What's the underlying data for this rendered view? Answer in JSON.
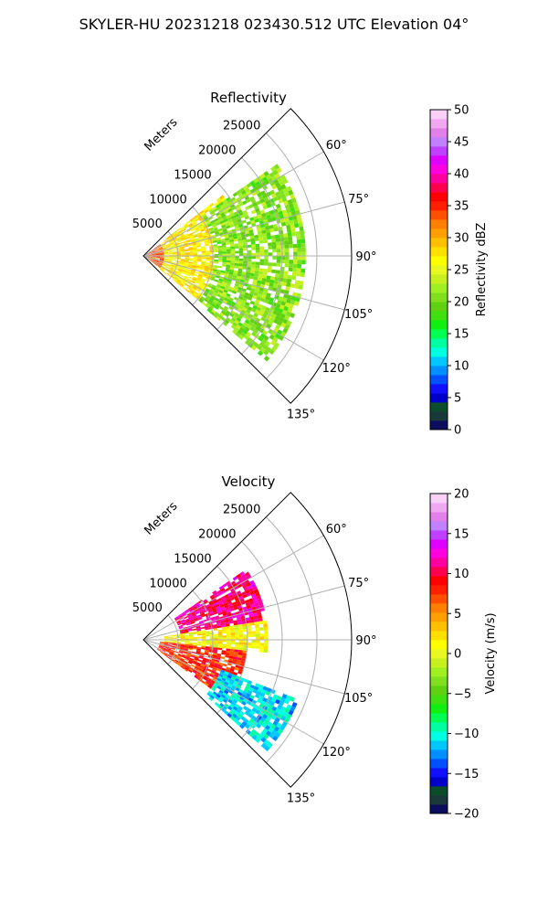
{
  "figure": {
    "suptitle": "SKYLER-HU  20231218  023430.512 UTC Elevation 04°"
  },
  "chart_data": [
    {
      "type": "heatmap",
      "projection": "polar-sector",
      "title": "Reflectivity",
      "range_label": "Meters",
      "range_ticks": [
        5000,
        10000,
        15000,
        20000,
        25000
      ],
      "range_tick_labels": [
        "5000",
        "10000",
        "15000",
        "20000",
        "25000"
      ],
      "rmax": 30000,
      "azimuth_range_deg": [
        45,
        135
      ],
      "azimuth_ticks": [
        60,
        75,
        90,
        105,
        120,
        135
      ],
      "azimuth_tick_labels": [
        "60°",
        "75°",
        "90°",
        "105°",
        "120°",
        "135°"
      ],
      "grid": true,
      "data_extent_m": 25000,
      "colorbar": {
        "label": "Reflectivity dBZ",
        "vmin": 0,
        "vmax": 50,
        "ticks": [
          0,
          5,
          10,
          15,
          20,
          25,
          30,
          35,
          40,
          45,
          50
        ],
        "tick_labels": [
          "0",
          "5",
          "10",
          "15",
          "20",
          "25",
          "30",
          "35",
          "40",
          "45",
          "50"
        ],
        "colors": [
          "#0d0d5e",
          "#1a3a3a",
          "#0b4d2a",
          "#0000c8",
          "#1010ff",
          "#0050ff",
          "#0090ff",
          "#00c8ff",
          "#00ffe0",
          "#00ffa0",
          "#00ff50",
          "#10ef10",
          "#40e010",
          "#60d010",
          "#80e020",
          "#a0ef20",
          "#c8f020",
          "#e8f820",
          "#ffff00",
          "#ffe000",
          "#ffc000",
          "#ffa000",
          "#ff8000",
          "#ff5000",
          "#ff2000",
          "#ff0000",
          "#ff0050",
          "#ff00a0",
          "#ff00e0",
          "#e000ff",
          "#c040ff",
          "#c080ff",
          "#e080e8",
          "#f0a8f0",
          "#f8d0f8"
        ]
      },
      "regions": [
        {
          "name": "near-range high reflectivity",
          "range_m": [
            0,
            6000
          ],
          "azimuth_deg": [
            55,
            125
          ],
          "value_dbz": 34
        },
        {
          "name": "mid-range moderate echo",
          "range_m": [
            3000,
            14000
          ],
          "azimuth_deg": [
            52,
            128
          ],
          "value_dbz": 27
        },
        {
          "name": "far-range weak echo",
          "range_m": [
            10000,
            23000
          ],
          "azimuth_deg": [
            55,
            130
          ],
          "value_dbz": 21
        }
      ]
    },
    {
      "type": "heatmap",
      "projection": "polar-sector",
      "title": "Velocity",
      "range_label": "Meters",
      "range_ticks": [
        5000,
        10000,
        15000,
        20000,
        25000
      ],
      "range_tick_labels": [
        "5000",
        "10000",
        "15000",
        "20000",
        "25000"
      ],
      "rmax": 30000,
      "azimuth_range_deg": [
        45,
        135
      ],
      "azimuth_ticks": [
        60,
        75,
        90,
        105,
        120,
        135
      ],
      "azimuth_tick_labels": [
        "60°",
        "75°",
        "90°",
        "105°",
        "120°",
        "135°"
      ],
      "grid": true,
      "data_extent_m": 25000,
      "colorbar": {
        "label": "Velocity (m/s)",
        "vmin": -20,
        "vmax": 20,
        "ticks": [
          -20,
          -15,
          -10,
          -5,
          0,
          5,
          10,
          15,
          20
        ],
        "tick_labels": [
          "−20",
          "−15",
          "−10",
          "−5",
          "0",
          "5",
          "10",
          "15",
          "20"
        ],
        "colors": [
          "#0d0d5e",
          "#1a3a3a",
          "#0b4d2a",
          "#0000c8",
          "#1010ff",
          "#0050ff",
          "#0090ff",
          "#00c8ff",
          "#00ffe0",
          "#00ffa0",
          "#00ff50",
          "#10ef10",
          "#40e010",
          "#60d010",
          "#80e020",
          "#a0ef20",
          "#c8f020",
          "#e8f820",
          "#ffff00",
          "#ffe000",
          "#ffc000",
          "#ffa000",
          "#ff8000",
          "#ff5000",
          "#ff2000",
          "#ff0000",
          "#ff0050",
          "#ff00a0",
          "#ff00e0",
          "#e000ff",
          "#c040ff",
          "#c080ff",
          "#e080e8",
          "#f0a8f0",
          "#f8d0f8"
        ]
      },
      "regions": [
        {
          "name": "outbound northern band",
          "range_m": [
            5000,
            18000
          ],
          "azimuth_deg": [
            55,
            80
          ],
          "value_ms": 11
        },
        {
          "name": "near-zero central band",
          "range_m": [
            3000,
            18000
          ],
          "azimuth_deg": [
            80,
            95
          ],
          "value_ms": 1
        },
        {
          "name": "inbound southern band",
          "range_m": [
            2000,
            15000
          ],
          "azimuth_deg": [
            95,
            125
          ],
          "value_ms": 8
        },
        {
          "name": "approaching far southern echo",
          "range_m": [
            12000,
            24000
          ],
          "azimuth_deg": [
            110,
            132
          ],
          "value_ms": -11
        }
      ]
    }
  ]
}
